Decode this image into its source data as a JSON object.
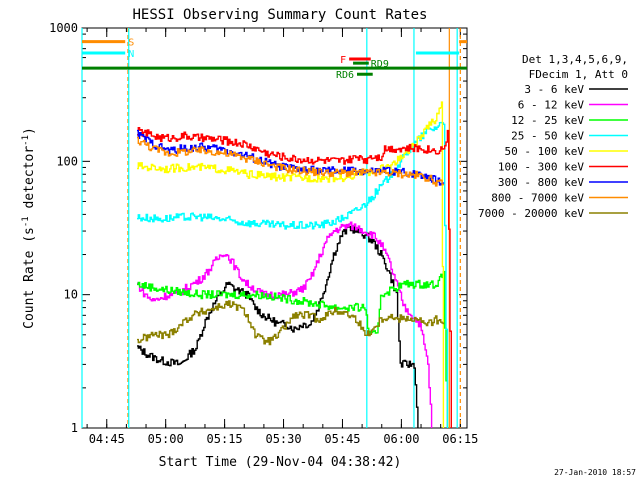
{
  "chart_data": {
    "type": "line",
    "title": "HESSI Observing Summary Count Rates",
    "xlabel": "Start Time (29-Nov-04 04:38:42)",
    "ylabel_main": "Count Rate (s",
    "ylabel_sup1": "-1",
    "ylabel_mid": " detector",
    "ylabel_sup2": "-1",
    "ylabel_end": ")",
    "xlim_minutes": [
      0,
      98
    ],
    "ylim": [
      1,
      1000
    ],
    "yscale": "log",
    "xticks": [
      {
        "t": 6.3,
        "label": "04:45"
      },
      {
        "t": 21.3,
        "label": "05:00"
      },
      {
        "t": 36.3,
        "label": "05:15"
      },
      {
        "t": 51.3,
        "label": "05:30"
      },
      {
        "t": 66.3,
        "label": "05:45"
      },
      {
        "t": 81.3,
        "label": "06:00"
      },
      {
        "t": 96.3,
        "label": "06:15"
      }
    ],
    "yticks": [
      {
        "v": 1,
        "label": "1"
      },
      {
        "v": 10,
        "label": "10"
      },
      {
        "v": 100,
        "label": "100"
      },
      {
        "v": 1000,
        "label": "1000"
      }
    ],
    "legend_header": [
      "Det 1,3,4,5,6,9,",
      "FDecim 1, Att 0"
    ],
    "legend_position": "right",
    "series": [
      {
        "name": "3 - 6 keV",
        "color": "#000000",
        "points": [
          [
            14,
            4
          ],
          [
            17,
            3.5
          ],
          [
            20,
            3.2
          ],
          [
            25,
            3
          ],
          [
            27,
            3.5
          ],
          [
            29,
            4
          ],
          [
            31,
            6
          ],
          [
            33,
            8
          ],
          [
            35,
            10
          ],
          [
            37,
            12
          ],
          [
            39,
            11
          ],
          [
            42,
            10
          ],
          [
            44,
            8
          ],
          [
            46,
            7
          ],
          [
            48,
            6.5
          ],
          [
            50,
            6
          ],
          [
            52,
            6
          ],
          [
            54,
            5.5
          ],
          [
            56,
            6
          ],
          [
            58,
            6
          ],
          [
            60,
            8
          ],
          [
            62,
            12
          ],
          [
            64,
            20
          ],
          [
            66,
            28
          ],
          [
            68,
            32
          ],
          [
            70,
            30
          ],
          [
            72,
            28
          ],
          [
            74,
            25
          ],
          [
            76,
            20
          ],
          [
            78,
            15
          ],
          [
            80,
            10
          ],
          [
            81,
            3
          ],
          [
            83,
            3
          ],
          [
            84.5,
            3
          ],
          [
            85.5,
            1
          ]
        ]
      },
      {
        "name": "6 - 12 keV",
        "color": "#ff00ff",
        "points": [
          [
            14,
            12
          ],
          [
            16,
            10
          ],
          [
            18,
            9
          ],
          [
            20,
            9.5
          ],
          [
            22,
            10
          ],
          [
            24,
            10
          ],
          [
            26,
            11
          ],
          [
            28,
            12
          ],
          [
            30,
            13
          ],
          [
            32,
            15
          ],
          [
            34,
            18
          ],
          [
            36,
            21
          ],
          [
            38,
            18
          ],
          [
            40,
            14
          ],
          [
            42,
            12
          ],
          [
            44,
            11
          ],
          [
            46,
            10
          ],
          [
            48,
            10
          ],
          [
            50,
            10
          ],
          [
            52,
            10
          ],
          [
            54,
            10.5
          ],
          [
            56,
            11
          ],
          [
            58,
            13
          ],
          [
            60,
            18
          ],
          [
            62,
            25
          ],
          [
            64,
            30
          ],
          [
            66,
            32
          ],
          [
            68,
            33
          ],
          [
            70,
            32
          ],
          [
            72,
            30
          ],
          [
            74,
            28
          ],
          [
            76,
            24
          ],
          [
            78,
            18
          ],
          [
            80,
            12
          ],
          [
            82,
            8
          ],
          [
            84,
            7
          ],
          [
            86,
            6
          ],
          [
            88,
            3
          ],
          [
            89,
            1
          ]
        ]
      },
      {
        "name": "12 - 25 keV",
        "color": "#00ff00",
        "points": [
          [
            14,
            12
          ],
          [
            20,
            11
          ],
          [
            25,
            10.5
          ],
          [
            30,
            10
          ],
          [
            35,
            10
          ],
          [
            40,
            10
          ],
          [
            45,
            10
          ],
          [
            50,
            9.5
          ],
          [
            55,
            9
          ],
          [
            60,
            8.5
          ],
          [
            65,
            8
          ],
          [
            70,
            8
          ],
          [
            72,
            8
          ],
          [
            73,
            5
          ],
          [
            75,
            5
          ],
          [
            76,
            10
          ],
          [
            79,
            11
          ],
          [
            82,
            12
          ],
          [
            85,
            12
          ],
          [
            88,
            12
          ],
          [
            90,
            12
          ],
          [
            92,
            14
          ],
          [
            93,
            1
          ]
        ]
      },
      {
        "name": "25 - 50 keV",
        "color": "#00ffff",
        "points": [
          [
            14,
            38
          ],
          [
            20,
            37
          ],
          [
            25,
            38
          ],
          [
            30,
            38.5
          ],
          [
            35,
            37
          ],
          [
            40,
            35
          ],
          [
            45,
            34
          ],
          [
            50,
            33
          ],
          [
            55,
            33
          ],
          [
            60,
            33
          ],
          [
            62,
            34
          ],
          [
            65,
            36
          ],
          [
            68,
            40
          ],
          [
            71,
            45
          ],
          [
            74,
            55
          ],
          [
            77,
            70
          ],
          [
            80,
            90
          ],
          [
            83,
            120
          ],
          [
            86,
            150
          ],
          [
            88,
            170
          ],
          [
            90,
            180
          ],
          [
            92,
            200
          ],
          [
            93,
            1
          ]
        ]
      },
      {
        "name": "50 - 100 keV",
        "color": "#ffff00",
        "points": [
          [
            14,
            92
          ],
          [
            18,
            90
          ],
          [
            22,
            88
          ],
          [
            26,
            90
          ],
          [
            30,
            90
          ],
          [
            34,
            88
          ],
          [
            38,
            85
          ],
          [
            42,
            80
          ],
          [
            46,
            78
          ],
          [
            50,
            76
          ],
          [
            55,
            75
          ],
          [
            60,
            75
          ],
          [
            65,
            75
          ],
          [
            68,
            76
          ],
          [
            71,
            80
          ],
          [
            74,
            85
          ],
          [
            77,
            90
          ],
          [
            80,
            100
          ],
          [
            83,
            120
          ],
          [
            86,
            150
          ],
          [
            88,
            180
          ],
          [
            90,
            210
          ],
          [
            91.5,
            280
          ],
          [
            92,
            1
          ]
        ]
      },
      {
        "name": "100 - 300 keV",
        "color": "#ff0000",
        "points": [
          [
            14,
            168
          ],
          [
            17,
            160
          ],
          [
            20,
            150
          ],
          [
            23,
            150
          ],
          [
            26,
            155
          ],
          [
            29,
            150
          ],
          [
            32,
            148
          ],
          [
            35,
            145
          ],
          [
            38,
            140
          ],
          [
            41,
            135
          ],
          [
            44,
            125
          ],
          [
            47,
            115
          ],
          [
            50,
            110
          ],
          [
            53,
            105
          ],
          [
            56,
            103
          ],
          [
            59,
            102
          ],
          [
            62,
            101
          ],
          [
            65,
            100
          ],
          [
            68,
            102
          ],
          [
            71,
            110
          ],
          [
            72,
            100
          ],
          [
            73,
            110
          ],
          [
            76,
            108
          ],
          [
            77,
            125
          ],
          [
            80,
            125
          ],
          [
            83,
            125
          ],
          [
            86,
            125
          ],
          [
            88,
            123
          ],
          [
            90,
            120
          ],
          [
            92,
            125
          ],
          [
            93,
            160
          ],
          [
            94,
            1
          ]
        ]
      },
      {
        "name": "300 - 800 keV",
        "color": "#0000ff",
        "points": [
          [
            14,
            160
          ],
          [
            18,
            135
          ],
          [
            22,
            120
          ],
          [
            26,
            125
          ],
          [
            30,
            128
          ],
          [
            34,
            125
          ],
          [
            38,
            118
          ],
          [
            42,
            110
          ],
          [
            46,
            100
          ],
          [
            50,
            92
          ],
          [
            54,
            88
          ],
          [
            58,
            86
          ],
          [
            62,
            85
          ],
          [
            66,
            85
          ],
          [
            70,
            85
          ],
          [
            72,
            83
          ],
          [
            75,
            84
          ],
          [
            77,
            85
          ],
          [
            80,
            84
          ],
          [
            83,
            82
          ],
          [
            86,
            80
          ],
          [
            88,
            78
          ],
          [
            90,
            72
          ],
          [
            92,
            68
          ]
        ]
      },
      {
        "name": "800 - 7000 keV",
        "color": "#ff8c00",
        "points": [
          [
            14,
            145
          ],
          [
            18,
            125
          ],
          [
            22,
            115
          ],
          [
            26,
            118
          ],
          [
            30,
            120
          ],
          [
            34,
            118
          ],
          [
            38,
            112
          ],
          [
            42,
            105
          ],
          [
            46,
            98
          ],
          [
            50,
            90
          ],
          [
            54,
            86
          ],
          [
            58,
            84
          ],
          [
            62,
            82
          ],
          [
            66,
            82
          ],
          [
            70,
            82
          ],
          [
            74,
            82
          ],
          [
            78,
            82
          ],
          [
            82,
            80
          ],
          [
            86,
            78
          ],
          [
            88,
            75
          ],
          [
            90,
            70
          ],
          [
            92,
            66
          ]
        ]
      },
      {
        "name": "7000 - 20000 keV",
        "color": "#8b8000",
        "points": [
          [
            14,
            4.5
          ],
          [
            18,
            5
          ],
          [
            22,
            5
          ],
          [
            25,
            6
          ],
          [
            28,
            7
          ],
          [
            31,
            7.5
          ],
          [
            34,
            8
          ],
          [
            37,
            8.5
          ],
          [
            40,
            8
          ],
          [
            42,
            7
          ],
          [
            44,
            5
          ],
          [
            46,
            4.5
          ],
          [
            48,
            4.5
          ],
          [
            50,
            5
          ],
          [
            52,
            6
          ],
          [
            54,
            7
          ],
          [
            56,
            7
          ],
          [
            58,
            7
          ],
          [
            60,
            6.5
          ],
          [
            62,
            7
          ],
          [
            64,
            7.5
          ],
          [
            66,
            7.5
          ],
          [
            68,
            7
          ],
          [
            70,
            6.5
          ],
          [
            72,
            5
          ],
          [
            74,
            5.5
          ],
          [
            76,
            6.5
          ],
          [
            78,
            7
          ],
          [
            80,
            6.5
          ],
          [
            82,
            6.8
          ],
          [
            85,
            6.5
          ],
          [
            88,
            6
          ],
          [
            90,
            6.5
          ],
          [
            92,
            6
          ]
        ]
      }
    ],
    "flags": {
      "S": {
        "label": "S",
        "color": "#ff8c00",
        "value": 790,
        "spans": [
          [
            0,
            11
          ],
          [
            96,
            98
          ]
        ]
      },
      "N": {
        "label": "N",
        "color": "#00ffff",
        "value": 650,
        "spans": [
          [
            0,
            11
          ],
          [
            85,
            96
          ]
        ]
      },
      "F": {
        "label": "F",
        "color": "#ff0000",
        "value": 585,
        "spans": [
          [
            68,
            73.5
          ]
        ]
      },
      "RD9": {
        "label": "RD9",
        "color": "#008000",
        "value": 545,
        "spans": [
          [
            69,
            73
          ]
        ]
      },
      "RD6": {
        "label": "RD6",
        "color": "#008000",
        "value": 450,
        "spans": [
          [
            70,
            74
          ]
        ]
      },
      "saa_line": {
        "color": "#008000",
        "value": 500,
        "spans": [
          [
            0,
            98
          ]
        ]
      }
    },
    "vertical_markers": [
      {
        "t": 0,
        "color": "#00ffff",
        "dashed": false
      },
      {
        "t": 11.7,
        "color": "#ff8c00",
        "dashed": true
      },
      {
        "t": 11.9,
        "color": "#00ffff",
        "dashed": false
      },
      {
        "t": 72.5,
        "color": "#00ffff",
        "dashed": false
      },
      {
        "t": 84.5,
        "color": "#00ffff",
        "dashed": false
      },
      {
        "t": 93.5,
        "color": "#ff8c00",
        "dashed": false
      },
      {
        "t": 95.5,
        "color": "#00ffff",
        "dashed": false
      },
      {
        "t": 96.3,
        "color": "#ff8c00",
        "dashed": true
      }
    ]
  },
  "footer": {
    "timestamp": "27-Jan-2010 18:57"
  }
}
